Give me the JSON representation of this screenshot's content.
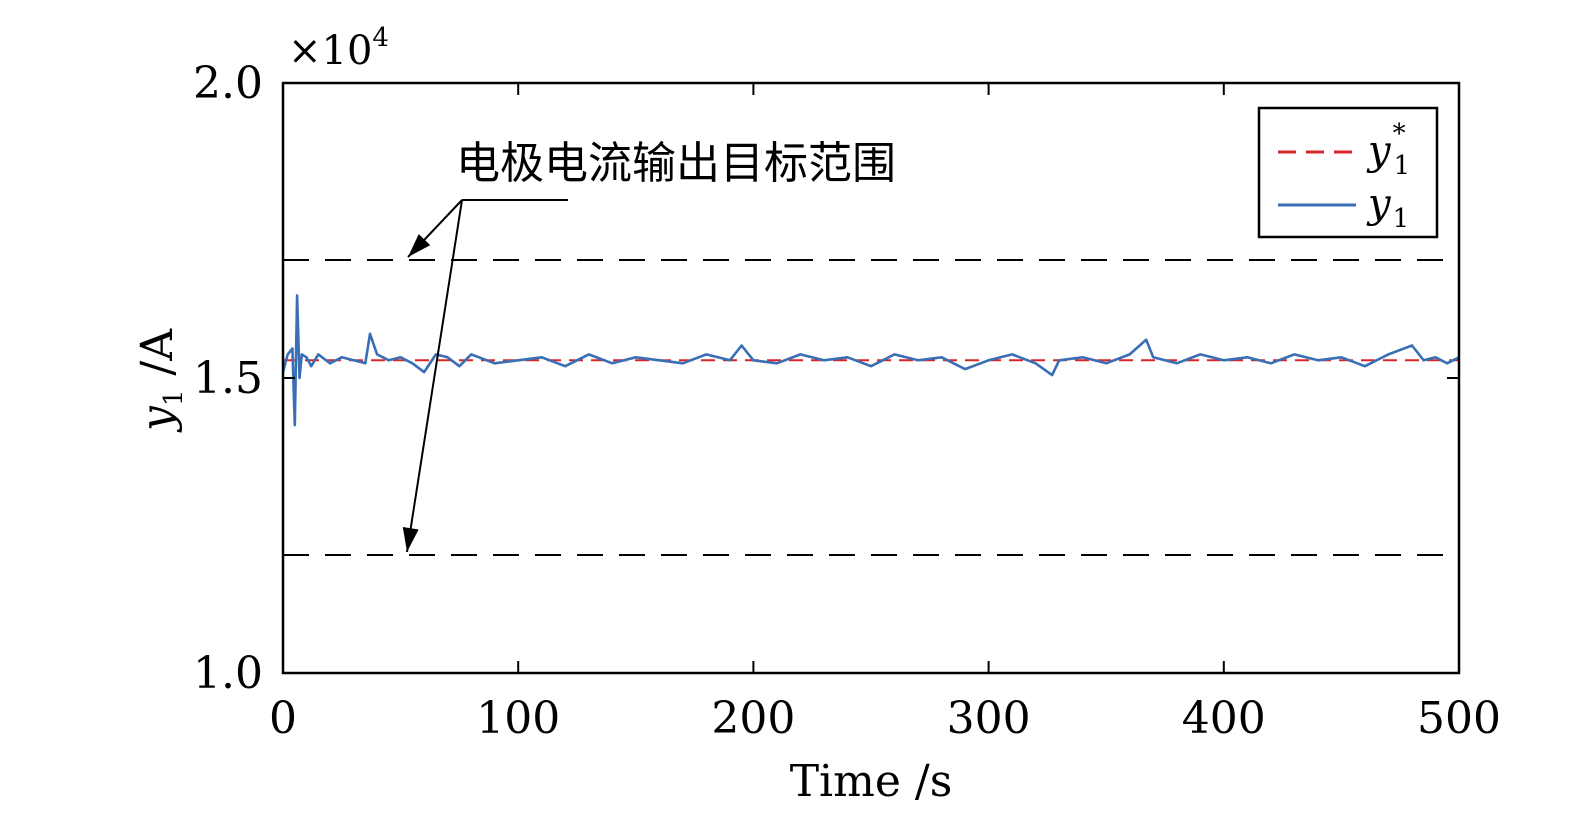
{
  "chart_data": {
    "type": "line",
    "xlabel": "Time /s",
    "ylabel_main": "y",
    "ylabel_sub": "1",
    "ylabel_unit": " /A",
    "xlim": [
      0,
      500
    ],
    "ylim": [
      10000,
      20000
    ],
    "y_multiplier_label": "×10",
    "y_multiplier_exp": "4",
    "xticks": [
      0,
      100,
      200,
      300,
      400,
      500
    ],
    "xtick_labels": [
      "0",
      "100",
      "200",
      "300",
      "400",
      "500"
    ],
    "yticks": [
      10000,
      15000,
      20000
    ],
    "ytick_labels": [
      "1.0",
      "1.5",
      "2.0"
    ],
    "grid": false,
    "legend_position": "top-right",
    "target_range": {
      "upper": 17000,
      "lower": 12000
    },
    "annotation": "电极电流输出目标范围",
    "series": [
      {
        "name": "y1*",
        "legend_main": "y",
        "legend_sub": "1",
        "legend_sup": "*",
        "style": "dashed",
        "color": "#d62728",
        "x": [
          0,
          500
        ],
        "y": [
          15300,
          15300
        ]
      },
      {
        "name": "y1",
        "legend_main": "y",
        "legend_sub": "1",
        "style": "solid",
        "color": "#3a6fb5",
        "x": [
          0,
          2,
          4,
          5,
          6,
          7,
          8,
          10,
          12,
          15,
          20,
          25,
          30,
          35,
          37,
          40,
          45,
          50,
          55,
          60,
          65,
          70,
          75,
          80,
          90,
          100,
          110,
          120,
          130,
          140,
          150,
          160,
          170,
          180,
          190,
          195,
          200,
          210,
          220,
          230,
          240,
          250,
          260,
          270,
          280,
          290,
          300,
          310,
          320,
          327,
          330,
          340,
          350,
          360,
          367,
          370,
          380,
          390,
          400,
          410,
          420,
          430,
          440,
          450,
          460,
          470,
          480,
          485,
          490,
          495,
          500
        ],
        "y": [
          15100,
          15400,
          15500,
          14200,
          16400,
          15000,
          15400,
          15350,
          15200,
          15400,
          15250,
          15350,
          15300,
          15250,
          15750,
          15400,
          15300,
          15350,
          15250,
          15100,
          15400,
          15350,
          15200,
          15400,
          15250,
          15300,
          15350,
          15200,
          15400,
          15250,
          15350,
          15300,
          15250,
          15400,
          15300,
          15550,
          15300,
          15250,
          15400,
          15300,
          15350,
          15200,
          15400,
          15300,
          15350,
          15150,
          15300,
          15400,
          15250,
          15050,
          15300,
          15350,
          15250,
          15400,
          15650,
          15350,
          15250,
          15400,
          15300,
          15350,
          15250,
          15400,
          15300,
          15350,
          15200,
          15400,
          15550,
          15300,
          15350,
          15250,
          15350
        ]
      }
    ]
  }
}
